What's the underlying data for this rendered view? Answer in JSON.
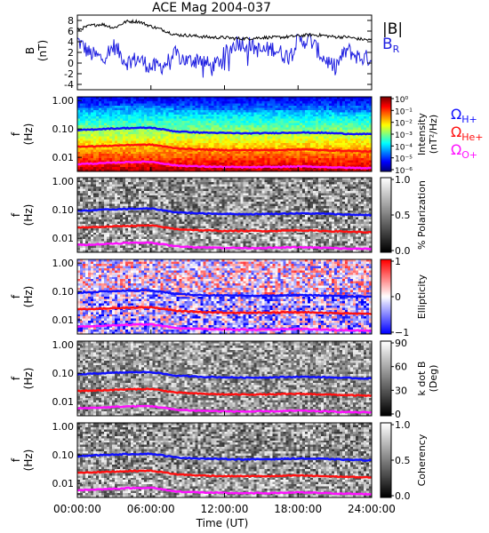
{
  "chart_data": [
    {
      "type": "line",
      "title": "ACE Mag 2004-037",
      "ylabel": "B",
      "yunit": "(nT)",
      "ylim": [
        -5,
        9
      ],
      "yticks": [
        "8",
        "6",
        "4",
        "2",
        "0",
        "-2",
        "-4"
      ],
      "legend": [
        {
          "label": "|B|",
          "color": "#000000"
        },
        {
          "label": "B",
          "subscript": "R",
          "color": "#1f1fe0"
        }
      ],
      "series": [
        {
          "name": "|B|",
          "color": "#000000",
          "x": [
            0,
            1,
            2,
            3,
            4,
            5,
            6,
            7,
            8,
            9,
            10,
            11,
            12,
            13,
            14,
            15,
            16,
            17,
            18,
            19,
            20,
            21,
            22,
            23,
            24
          ],
          "y": [
            6.2,
            7.0,
            7.3,
            6.6,
            7.8,
            7.8,
            6.9,
            6.2,
            5.3,
            5.2,
            5.0,
            4.8,
            4.8,
            4.6,
            4.6,
            4.8,
            4.8,
            4.9,
            5.1,
            5.3,
            5.2,
            4.9,
            4.9,
            4.5,
            4.3
          ]
        },
        {
          "name": "B_R",
          "color": "#1f1fe0",
          "x": [
            0,
            1,
            2,
            3,
            4,
            5,
            6,
            7,
            8,
            9,
            10,
            11,
            12,
            13,
            14,
            15,
            16,
            17,
            18,
            19,
            20,
            21,
            22,
            23,
            24
          ],
          "y": [
            4.3,
            1.8,
            0.9,
            3.2,
            0.2,
            0.8,
            -0.8,
            -0.5,
            1.6,
            0.3,
            1.0,
            -1.0,
            1.6,
            3.9,
            3.5,
            2.2,
            2.8,
            1.3,
            4.1,
            4.3,
            1.1,
            -0.8,
            2.5,
            1.0,
            0.9
          ]
        }
      ]
    },
    {
      "type": "heatmap",
      "quantity": "Intensity",
      "ylabel": "f",
      "yunit": "(Hz)",
      "yticks": [
        "1.00",
        "0.10",
        "0.01"
      ],
      "colorbar": {
        "label": "Intensity",
        "unit": "(nT²/Hz)",
        "ticks": [
          "10⁰",
          "10⁻¹",
          "10⁻²",
          "10⁻³",
          "10⁻⁴",
          "10⁻⁵",
          "10⁻⁶"
        ],
        "scale": "log",
        "range": [
          1e-06,
          1
        ]
      },
      "legend": [
        {
          "label": "Ω",
          "subscript": "H+",
          "color": "#1010ff"
        },
        {
          "label": "Ω",
          "subscript": "He+",
          "color": "#ff1010"
        },
        {
          "label": "Ω",
          "subscript": "O+",
          "color": "#ff10ff"
        }
      ]
    },
    {
      "type": "heatmap",
      "quantity": "% Polarization",
      "ylabel": "f",
      "yunit": "(Hz)",
      "yticks": [
        "1.00",
        "0.10",
        "0.01"
      ],
      "colorbar": {
        "label": "% Polarization",
        "ticks": [
          "1.0",
          "0.5",
          "0.0"
        ],
        "range": [
          0,
          1
        ]
      }
    },
    {
      "type": "heatmap",
      "quantity": "Ellipticity",
      "ylabel": "f",
      "yunit": "(Hz)",
      "yticks": [
        "1.00",
        "0.10",
        "0.01"
      ],
      "colorbar": {
        "label": "Ellipticity",
        "ticks": [
          "1",
          "0",
          "−1"
        ],
        "range": [
          -1,
          1
        ]
      }
    },
    {
      "type": "heatmap",
      "quantity": "k dot B",
      "ylabel": "f",
      "yunit": "(Hz)",
      "yticks": [
        "1.00",
        "0.10",
        "0.01"
      ],
      "colorbar": {
        "label": "k dot B",
        "unit": "(Deg)",
        "ticks": [
          "90",
          "60",
          "30",
          "0"
        ],
        "range": [
          0,
          90
        ]
      }
    },
    {
      "type": "heatmap",
      "quantity": "Coherency",
      "ylabel": "f",
      "yunit": "(Hz)",
      "yticks": [
        "1.00",
        "0.10",
        "0.01"
      ],
      "colorbar": {
        "label": "Coherency",
        "ticks": [
          "1.0",
          "0.5",
          "0.0"
        ],
        "range": [
          0,
          1
        ]
      }
    }
  ],
  "xaxis": {
    "label": "Time (UT)",
    "ticks": [
      "00:00:00",
      "06:00:00",
      "12:00:00",
      "18:00:00",
      "24:00:00"
    ],
    "range_hours": [
      0,
      24
    ]
  },
  "gyrofrequency_hz": {
    "x_hours": [
      0,
      2,
      4,
      6,
      8,
      10,
      12,
      14,
      16,
      18,
      20,
      22,
      24
    ],
    "H+": [
      0.09,
      0.1,
      0.107,
      0.11,
      0.082,
      0.075,
      0.072,
      0.07,
      0.072,
      0.075,
      0.073,
      0.068,
      0.065
    ],
    "He+": [
      0.024,
      0.025,
      0.027,
      0.028,
      0.021,
      0.019,
      0.018,
      0.018,
      0.018,
      0.019,
      0.018,
      0.017,
      0.016
    ],
    "O+": [
      0.0058,
      0.0062,
      0.0068,
      0.007,
      0.0052,
      0.0048,
      0.0046,
      0.0045,
      0.0046,
      0.0048,
      0.0046,
      0.0043,
      0.0042
    ]
  }
}
